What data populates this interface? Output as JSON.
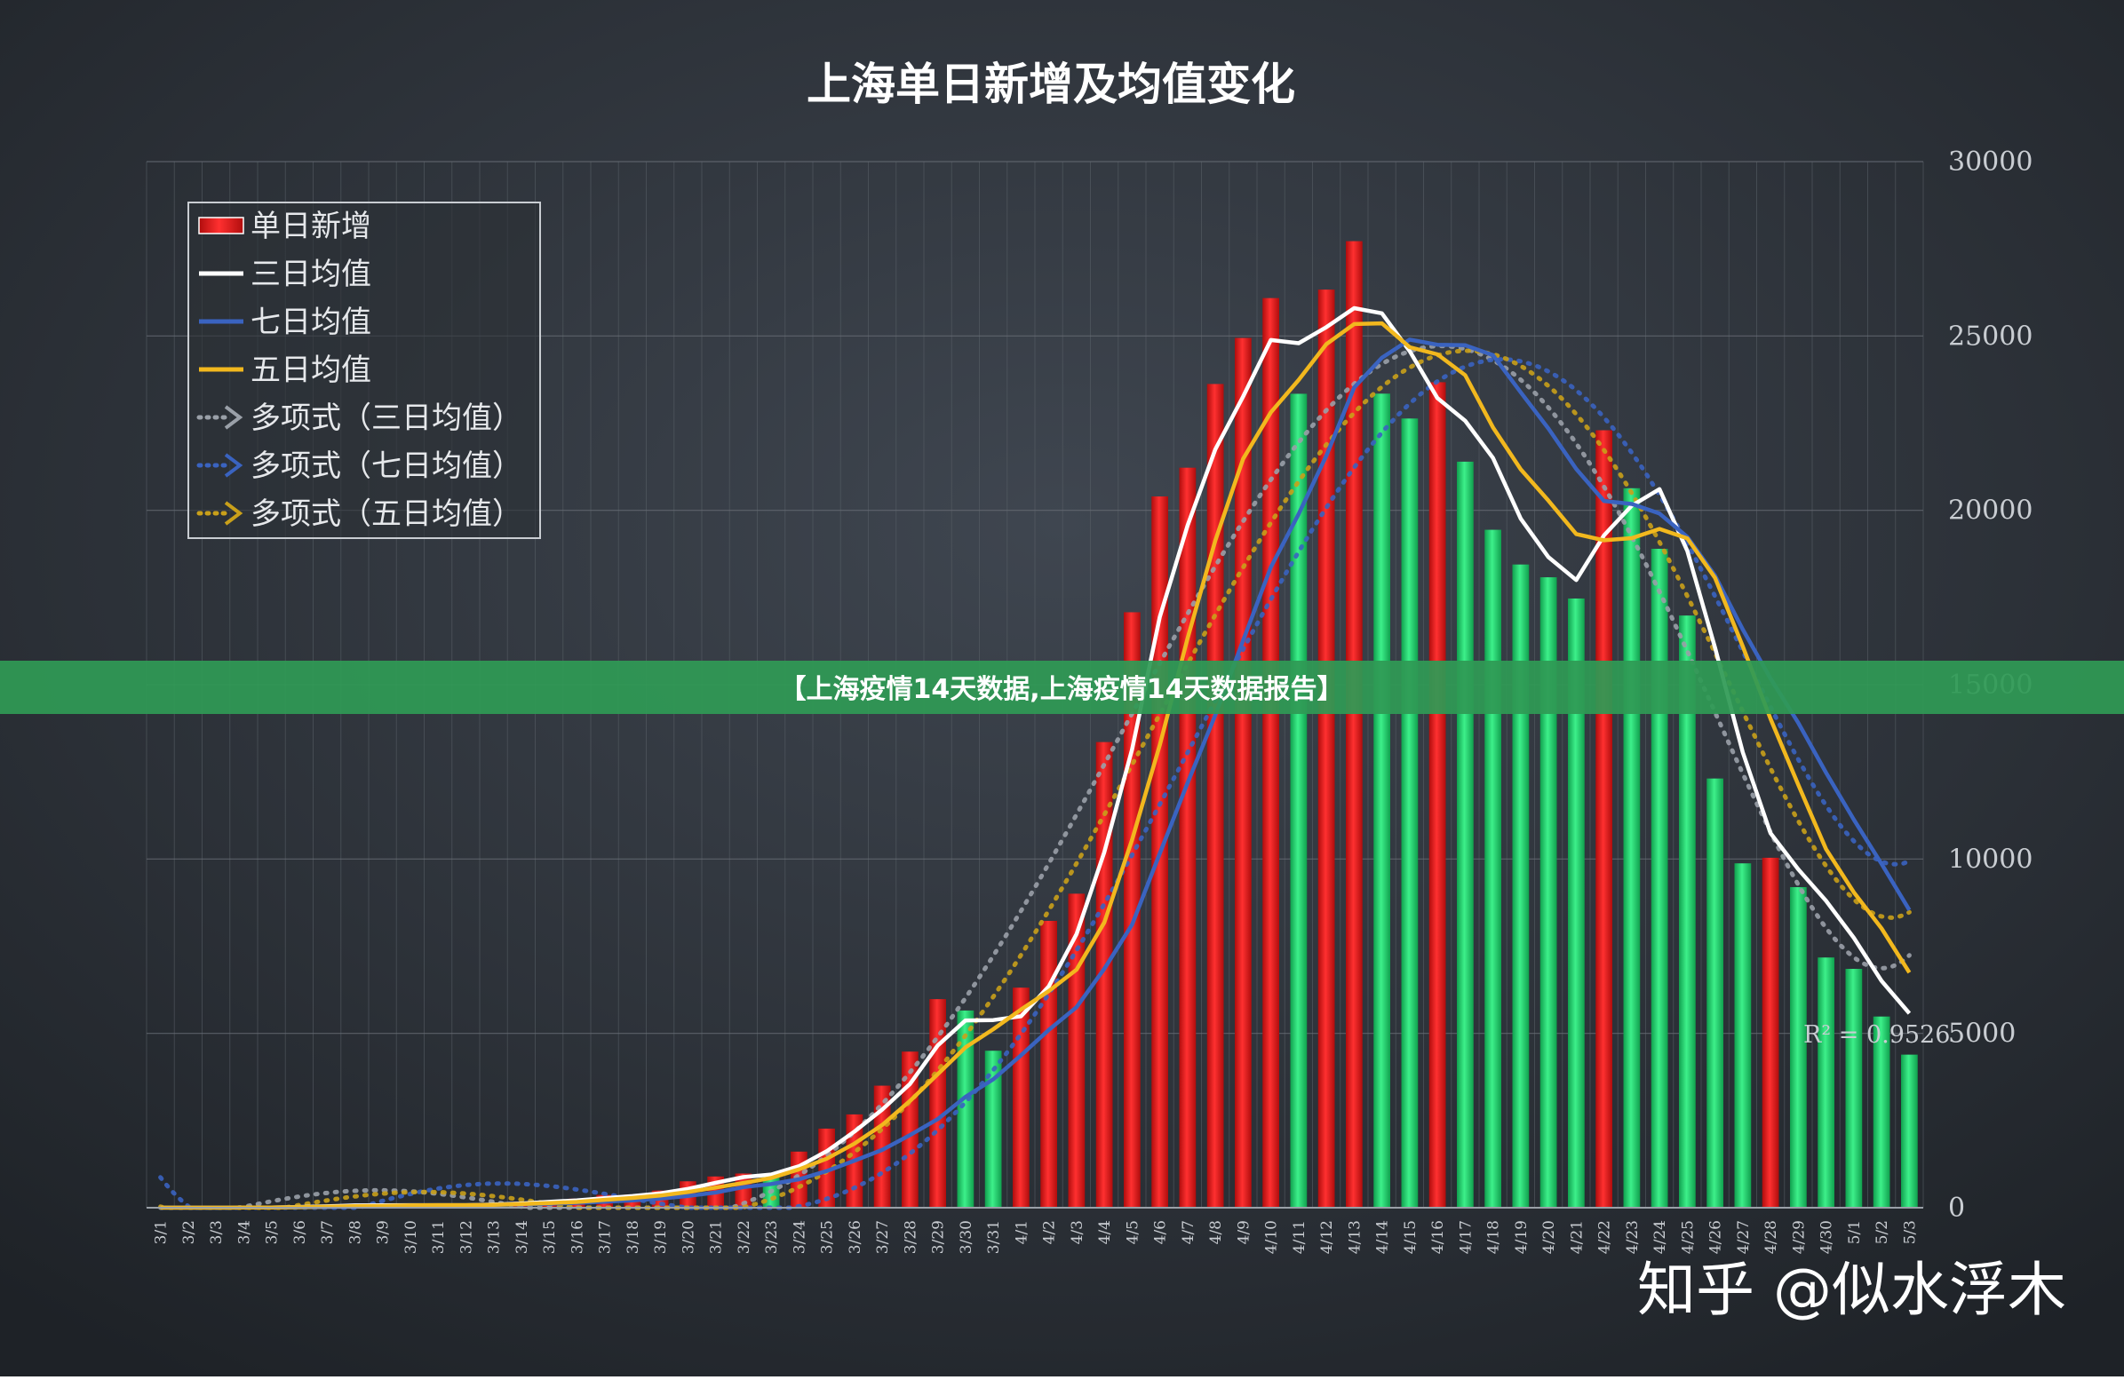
{
  "chart_data": {
    "type": "bar",
    "title": "上海单日新增及均值变化",
    "categories": [
      "3/1",
      "3/2",
      "3/3",
      "3/4",
      "3/5",
      "3/6",
      "3/7",
      "3/8",
      "3/9",
      "3/10",
      "3/11",
      "3/12",
      "3/13",
      "3/14",
      "3/15",
      "3/16",
      "3/17",
      "3/18",
      "3/19",
      "3/20",
      "3/21",
      "3/22",
      "3/23",
      "3/24",
      "3/25",
      "3/26",
      "3/27",
      "3/28",
      "3/29",
      "3/30",
      "3/31",
      "4/1",
      "4/2",
      "4/3",
      "4/4",
      "4/5",
      "4/6",
      "4/7",
      "4/8",
      "4/9",
      "4/10",
      "4/11",
      "4/12",
      "4/13",
      "4/14",
      "4/15",
      "4/16",
      "4/17",
      "4/18",
      "4/19",
      "4/20",
      "4/21",
      "4/22",
      "4/23",
      "4/24",
      "4/25",
      "4/26",
      "4/27",
      "4/28",
      "4/29",
      "4/30",
      "5/1",
      "5/2",
      "5/3"
    ],
    "ylim": [
      0,
      30000
    ],
    "yticks": [
      "0",
      "5000",
      "10000",
      "15000",
      "20000",
      "25000",
      "30000"
    ],
    "bar_colors": {
      "increase": "#e01a1a",
      "decrease": "#1fcf6a"
    },
    "series": [
      {
        "name": "单日新增",
        "kind": "bar",
        "color": "#e01a1a",
        "values": [
          2,
          3,
          2,
          16,
          2,
          55,
          62,
          81,
          62,
          76,
          83,
          64,
          130,
          169,
          203,
          260,
          366,
          374,
          492,
          758,
          896,
          981,
          979,
          1609,
          2269,
          2676,
          3500,
          4477,
          5982,
          5656,
          4502,
          6311,
          8226,
          9006,
          13354,
          17077,
          20398,
          21222,
          23623,
          24943,
          26087,
          23342,
          26330,
          27719,
          23346,
          22633,
          23674,
          21395,
          19442,
          18446,
          18080,
          17471,
          22296,
          20634,
          18897,
          16983,
          12309,
          9876,
          10036,
          9194,
          7176,
          6850,
          5483,
          4390
        ],
        "up": [
          1,
          1,
          0,
          1,
          0,
          1,
          1,
          1,
          0,
          1,
          1,
          0,
          1,
          1,
          1,
          1,
          1,
          1,
          1,
          1,
          1,
          1,
          0,
          1,
          1,
          1,
          1,
          1,
          1,
          0,
          0,
          1,
          1,
          1,
          1,
          1,
          1,
          1,
          1,
          1,
          1,
          0,
          1,
          1,
          0,
          0,
          1,
          0,
          0,
          0,
          0,
          0,
          1,
          0,
          0,
          0,
          0,
          0,
          1,
          0,
          0,
          0,
          0,
          0
        ]
      },
      {
        "name": "三日均值",
        "kind": "line",
        "color": "#ffffff",
        "values": [
          2,
          2,
          2,
          7,
          7,
          24,
          40,
          66,
          68,
          73,
          74,
          74,
          92,
          121,
          167,
          211,
          276,
          333,
          411,
          541,
          715,
          878,
          952,
          1190,
          1619,
          2185,
          2815,
          3551,
          4653,
          5372,
          5380,
          5490,
          6346,
          7848,
          10195,
          13146,
          16943,
          19566,
          21748,
          23263,
          24884,
          24791,
          25253,
          25797,
          25650,
          24566,
          23218,
          22567,
          21504,
          19761,
          18656,
          17999,
          19282,
          20134,
          20609,
          18838,
          16063,
          13056,
          10740,
          9702,
          8802,
          7740,
          6503,
          5574
        ]
      },
      {
        "name": "七日均值",
        "kind": "line",
        "color": "#3a63c0",
        "values": [
          2,
          2,
          2,
          6,
          5,
          13,
          20,
          32,
          40,
          51,
          63,
          69,
          81,
          94,
          115,
          141,
          172,
          208,
          262,
          336,
          436,
          592,
          679,
          815,
          1053,
          1349,
          1659,
          2084,
          2542,
          3182,
          3682,
          4373,
          5099,
          5754,
          6851,
          8119,
          10162,
          12185,
          14130,
          16270,
          18368,
          19894,
          21568,
          23520,
          24375,
          24896,
          24749,
          24734,
          24452,
          23384,
          22345,
          21186,
          20270,
          20182,
          19907,
          19238,
          18129,
          16581,
          15175,
          13902,
          12477,
          11128,
          9861,
          8536
        ]
      },
      {
        "name": "五日均值",
        "kind": "line",
        "color": "#f2b81e",
        "values": [
          2,
          2,
          2,
          5,
          5,
          16,
          27,
          43,
          52,
          67,
          73,
          73,
          84,
          104,
          132,
          165,
          226,
          280,
          349,
          450,
          577,
          710,
          853,
          1101,
          1406,
          1839,
          2373,
          3063,
          3831,
          4600,
          5120,
          5684,
          6214,
          6828,
          8180,
          10553,
          13272,
          16331,
          19135,
          21477,
          22811,
          23738,
          24767,
          25342,
          25363,
          24678,
          24474,
          23874,
          22380,
          21175,
          20278,
          19319,
          19141,
          19201,
          19468,
          19196,
          18063,
          16094,
          14020,
          12126,
          10283,
          9044,
          8010,
          6744
        ]
      },
      {
        "name": "多项式（三日均值）",
        "kind": "trend",
        "color": "#9aa0a8"
      },
      {
        "name": "多项式（七日均值）",
        "kind": "trend",
        "color": "#3a63c0"
      },
      {
        "name": "多项式（五日均值）",
        "kind": "trend",
        "color": "#c9a01a"
      }
    ],
    "annotations": [
      "R² = 0.9526"
    ],
    "grid": true,
    "legend": "top-left",
    "y_axis_position": "right"
  },
  "banner": "【上海疫情14天数据,上海疫情14天数据报告】",
  "watermark": "知乎 @似水浮木"
}
